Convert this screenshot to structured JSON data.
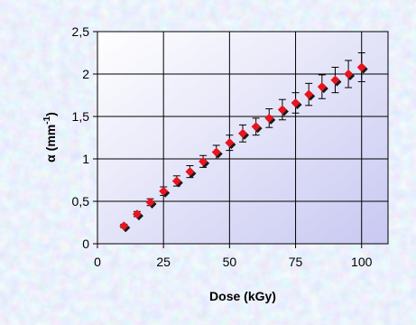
{
  "chart_data": {
    "type": "scatter",
    "title": "",
    "xlabel": "Dose (kGy)",
    "ylabel": {
      "symbol": "α",
      "open": " (mm",
      "exponent": "-1",
      "close": ")"
    },
    "xlim": [
      0,
      110
    ],
    "ylim": [
      0,
      2.5
    ],
    "x_ticks": [
      0,
      25,
      50,
      75,
      100
    ],
    "x_tick_labels": [
      "0",
      "25",
      "50",
      "75",
      "100"
    ],
    "y_ticks": [
      0,
      0.5,
      1,
      1.5,
      2,
      2.5
    ],
    "y_tick_labels": [
      "0",
      "0,5",
      "1",
      "1,5",
      "2",
      "2,5"
    ],
    "grid": true,
    "legend": "none",
    "series": [
      {
        "x": [
          10,
          15,
          20,
          25,
          30,
          35,
          40,
          45,
          50,
          55,
          60,
          65,
          70,
          75,
          80,
          85,
          90,
          95,
          100
        ],
        "y": [
          0.21,
          0.35,
          0.49,
          0.62,
          0.74,
          0.85,
          0.97,
          1.08,
          1.19,
          1.3,
          1.38,
          1.48,
          1.58,
          1.66,
          1.76,
          1.85,
          1.93,
          2.0,
          2.08
        ],
        "error": [
          0.02,
          0.03,
          0.04,
          0.05,
          0.06,
          0.07,
          0.07,
          0.08,
          0.09,
          0.1,
          0.1,
          0.11,
          0.12,
          0.12,
          0.13,
          0.14,
          0.15,
          0.16,
          0.17
        ],
        "marker": "diamond",
        "color": "#e8141e",
        "shadow_color": "#1a1a1a"
      }
    ]
  },
  "colors": {
    "plot_bg_top": "#ffffff",
    "plot_bg_bottom": "#c8c8f2",
    "frame_bg": "#cfe0f0",
    "grid": "#000000",
    "error_bar": "#000000"
  }
}
